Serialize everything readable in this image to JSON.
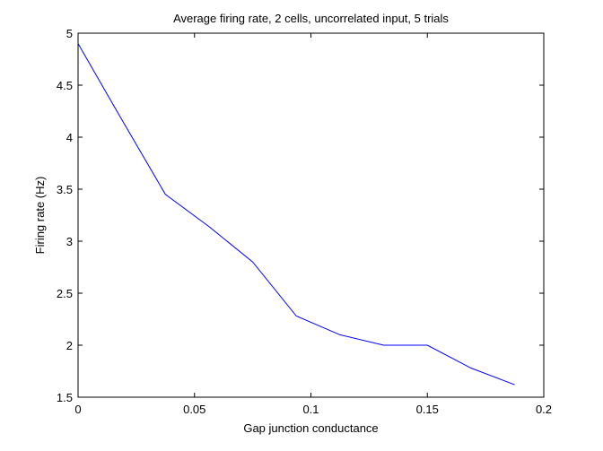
{
  "chart_data": {
    "type": "line",
    "title": "Average firing rate, 2 cells, uncorrelated input, 5 trials",
    "xlabel": "Gap junction conductance",
    "ylabel": "Firing rate (Hz)",
    "xlim": [
      0,
      0.2
    ],
    "ylim": [
      1.5,
      5
    ],
    "xticks": [
      0,
      0.05,
      0.1,
      0.15,
      0.2
    ],
    "xtick_labels": [
      "0",
      "0.05",
      "0.1",
      "0.15",
      "0.2"
    ],
    "yticks": [
      1.5,
      2,
      2.5,
      3,
      3.5,
      4,
      4.5,
      5
    ],
    "ytick_labels": [
      "1.5",
      "2",
      "2.5",
      "3",
      "3.5",
      "4",
      "4.5",
      "5"
    ],
    "grid": false,
    "series": [
      {
        "color": "#0000ff",
        "x": [
          0,
          0.01875,
          0.0375,
          0.05625,
          0.075,
          0.09375,
          0.1125,
          0.13125,
          0.15,
          0.16875,
          0.1875
        ],
        "y": [
          4.9,
          4.17,
          3.45,
          3.14,
          2.8,
          2.28,
          2.1,
          2.0,
          2.0,
          1.78,
          1.62
        ]
      }
    ]
  }
}
